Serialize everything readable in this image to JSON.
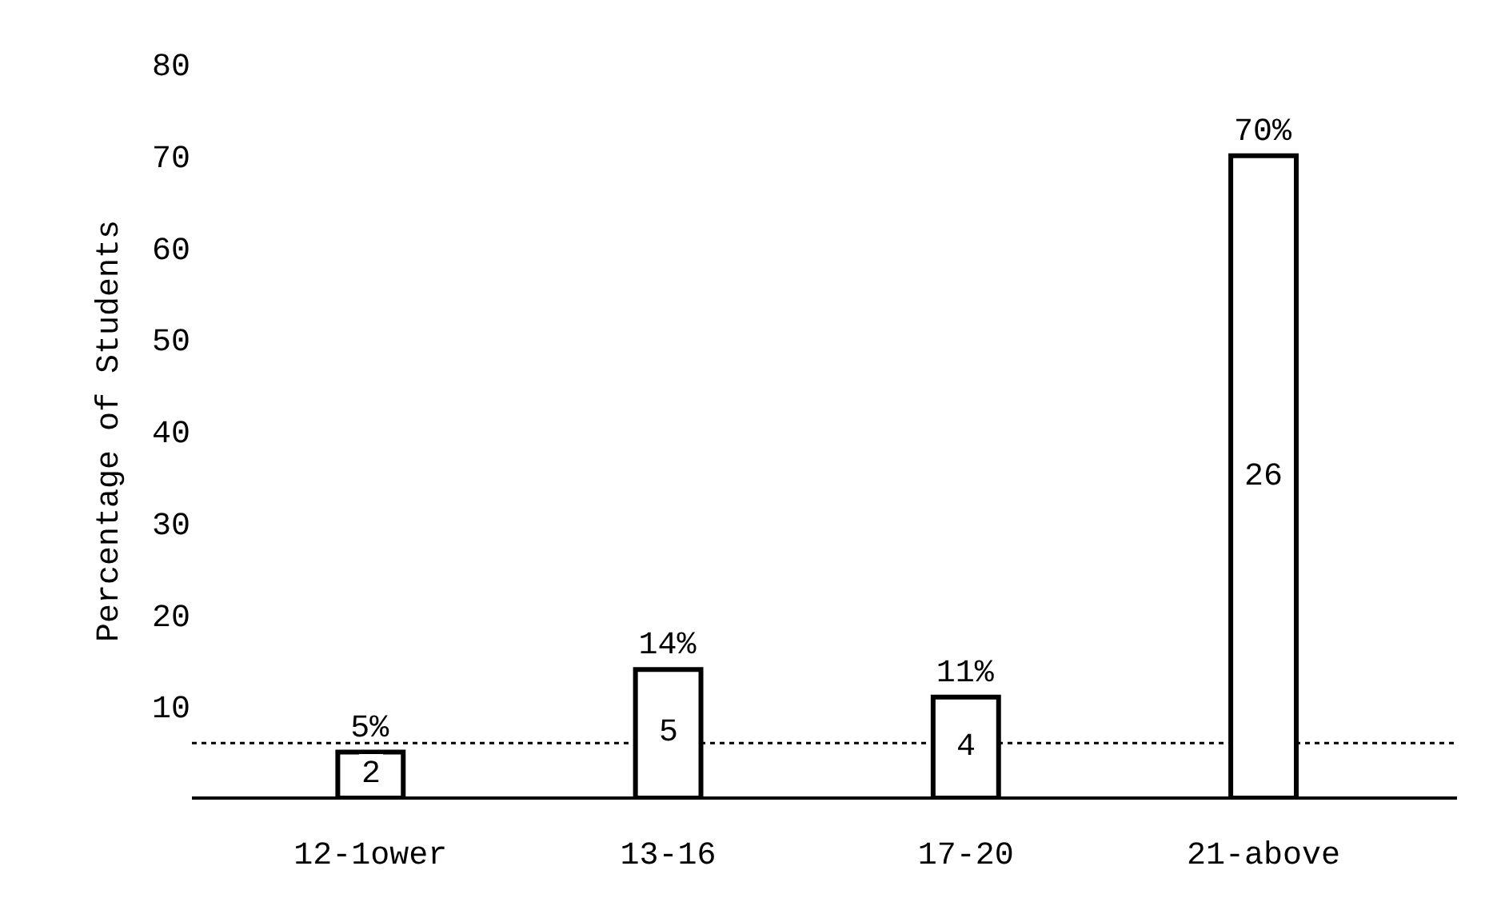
{
  "chart_data": {
    "type": "bar",
    "ylabel": "Percentage of Students",
    "categories": [
      "12-1ower",
      "13-16",
      "17-20",
      "21-above"
    ],
    "values": [
      5,
      14,
      11,
      70
    ],
    "color": "#ffffff",
    "value_labels": [
      "5%",
      "14%",
      "11%",
      "70%"
    ],
    "ylim": [
      0,
      80
    ],
    "yticks": [
      10,
      20,
      30,
      40,
      50,
      60,
      70,
      80
    ],
    "grid": false,
    "ref_lines": [
      {
        "axis": "y",
        "value": 6,
        "label": null,
        "color": "#000000",
        "line_style": "dotted"
      }
    ],
    "annotations": [
      "2",
      "5",
      "4",
      "26"
    ]
  }
}
